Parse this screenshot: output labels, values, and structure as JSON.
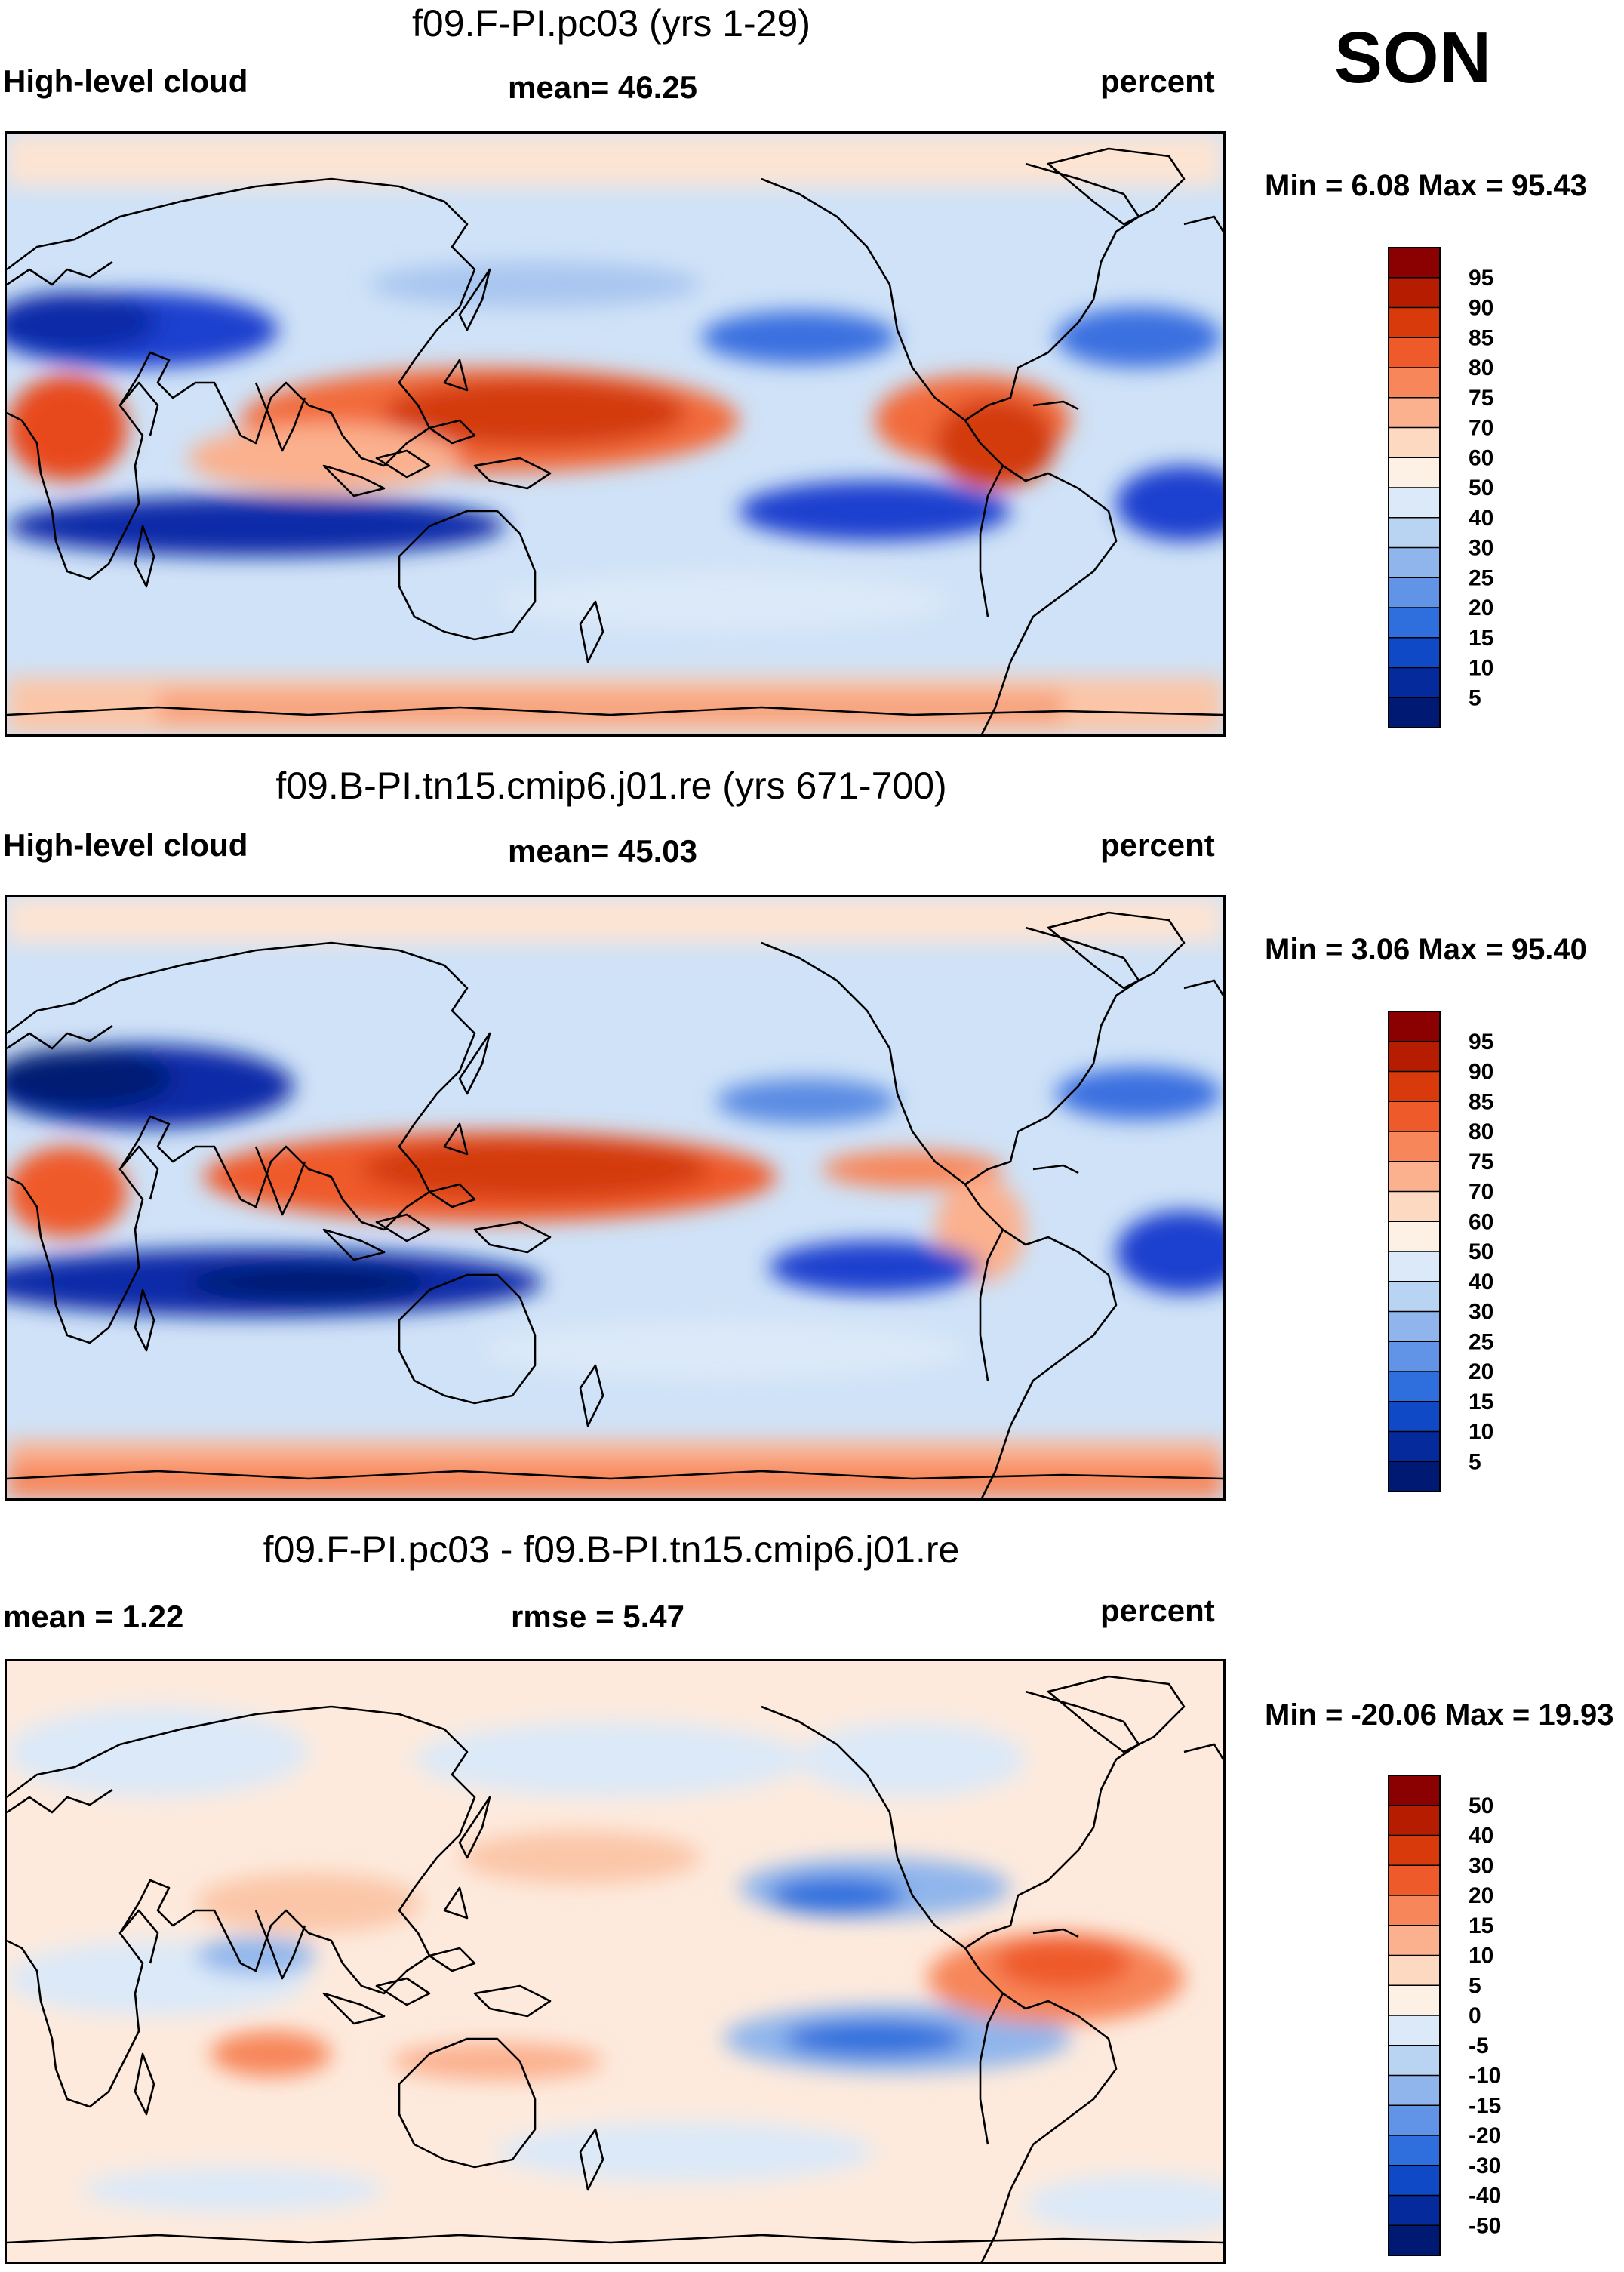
{
  "season": "SON",
  "chart_data": [
    {
      "type": "heatmap",
      "title": "f09.F-PI.pc03 (yrs 1-29)",
      "left_label": "High-level cloud",
      "center_label": "mean=  46.25",
      "units": "percent",
      "minmax": "Min =   6.08 Max =  95.43",
      "colorbar_levels": [
        "95",
        "90",
        "85",
        "80",
        "75",
        "70",
        "60",
        "50",
        "40",
        "30",
        "25",
        "20",
        "15",
        "10",
        "5"
      ],
      "colorbar_colors": [
        "#8b0000",
        "#b51c00",
        "#d93a0c",
        "#ef5a2a",
        "#f7865a",
        "#fbb08e",
        "#fdd9c2",
        "#fdf1e6",
        "#dce9f8",
        "#b9d3f3",
        "#8fb5ec",
        "#6194e6",
        "#2f6fdd",
        "#1049c6",
        "#052a9c",
        "#001a73"
      ],
      "min": 6.08,
      "max": 95.43,
      "mean": 46.25
    },
    {
      "type": "heatmap",
      "title": "f09.B-PI.tn15.cmip6.j01.re (yrs 671-700)",
      "left_label": "High-level cloud",
      "center_label": "mean=  45.03",
      "units": "percent",
      "minmax": "Min =   3.06 Max =  95.40",
      "colorbar_levels": [
        "95",
        "90",
        "85",
        "80",
        "75",
        "70",
        "60",
        "50",
        "40",
        "30",
        "25",
        "20",
        "15",
        "10",
        "5"
      ],
      "colorbar_colors": [
        "#8b0000",
        "#b51c00",
        "#d93a0c",
        "#ef5a2a",
        "#f7865a",
        "#fbb08e",
        "#fdd9c2",
        "#fdf1e6",
        "#dce9f8",
        "#b9d3f3",
        "#8fb5ec",
        "#6194e6",
        "#2f6fdd",
        "#1049c6",
        "#052a9c",
        "#001a73"
      ],
      "min": 3.06,
      "max": 95.4,
      "mean": 45.03
    },
    {
      "type": "heatmap",
      "title": "f09.F-PI.pc03 - f09.B-PI.tn15.cmip6.j01.re",
      "left_label": "mean =    1.22",
      "center_label": "rmse =    5.47",
      "units": "percent",
      "minmax": "Min = -20.06 Max =  19.93",
      "colorbar_levels": [
        "50",
        "40",
        "30",
        "20",
        "15",
        "10",
        "5",
        "0",
        "-5",
        "-10",
        "-15",
        "-20",
        "-30",
        "-40",
        "-50"
      ],
      "colorbar_colors": [
        "#8b0000",
        "#b51c00",
        "#d93a0c",
        "#ef5a2a",
        "#f7865a",
        "#fbb08e",
        "#fdd9c2",
        "#fdf1e6",
        "#dce9f8",
        "#b9d3f3",
        "#8fb5ec",
        "#6194e6",
        "#2f6fdd",
        "#1049c6",
        "#052a9c",
        "#001a73"
      ],
      "min": -20.06,
      "max": 19.93,
      "mean": 1.22,
      "rmse": 5.47
    }
  ]
}
